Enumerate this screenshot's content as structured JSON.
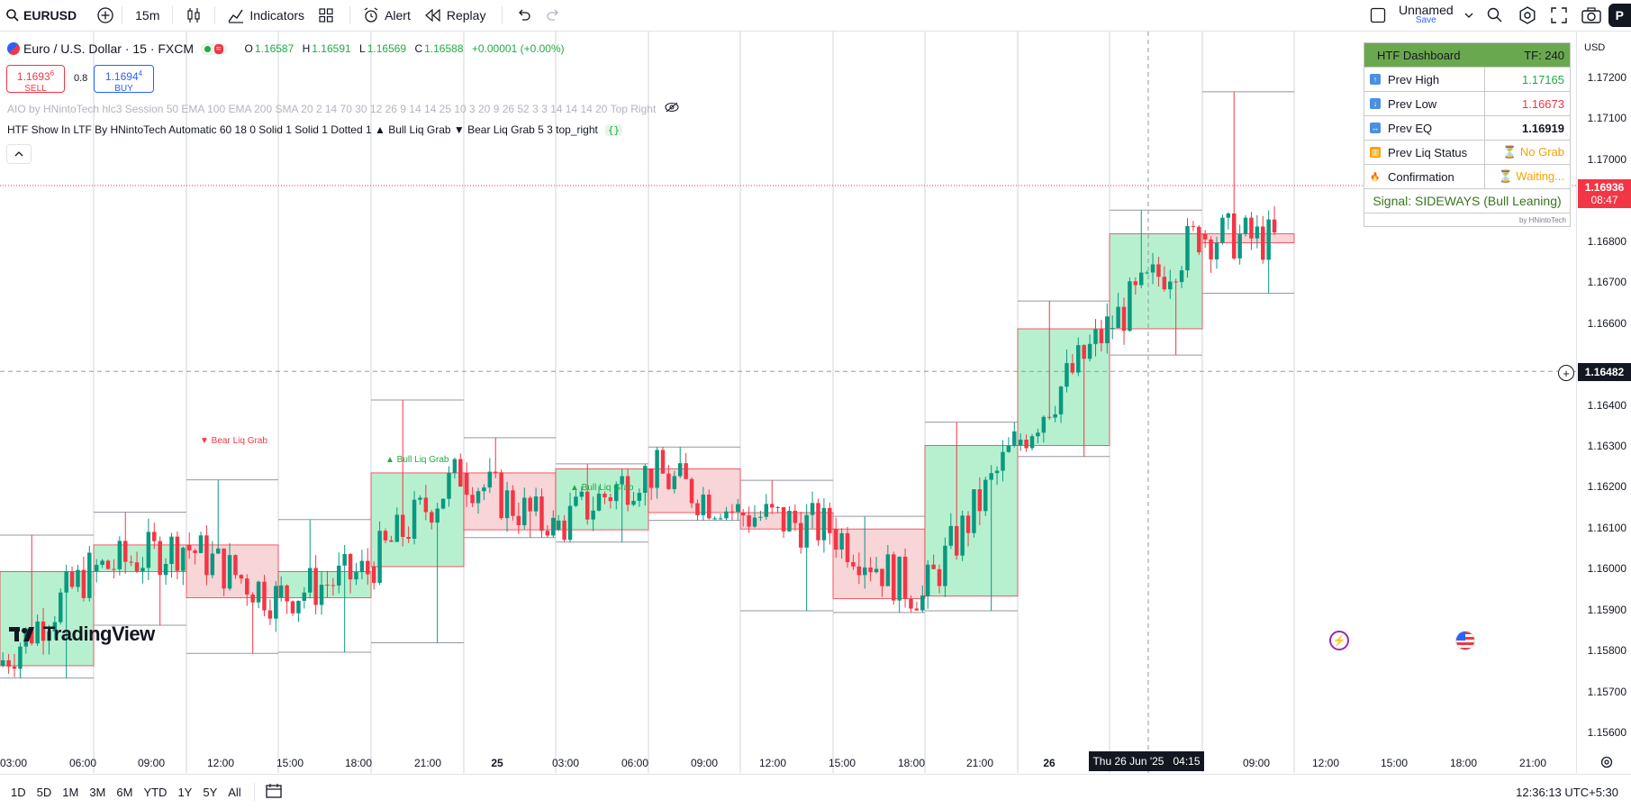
{
  "toolbar": {
    "symbol": "EURUSD",
    "interval": "15m",
    "indicators_label": "Indicators",
    "alert_label": "Alert",
    "replay_label": "Replay",
    "layout_name": "Unnamed",
    "layout_save": "Save",
    "corner_label": "P"
  },
  "legend": {
    "title": "Euro / U.S. Dollar · 15 · FXCM",
    "o_label": "O",
    "o_value": "1.16587",
    "h_label": "H",
    "h_value": "1.16591",
    "l_label": "L",
    "l_value": "1.16569",
    "c_label": "C",
    "c_value": "1.16588",
    "change": "+0.00001 (+0.00%)",
    "sell_price": "1.1693",
    "sell_price_sup": "6",
    "sell_label": "SELL",
    "spread": "0.8",
    "buy_price": "1.1694",
    "buy_price_sup": "4",
    "buy_label": "BUY",
    "indicator1": "AIO by HNintoTech hlc3 Session 50 EMA 100 EMA 200 SMA 20 2 14 70 30 12 26 9 14 14 25 10 3 20 9 26 52 3 3 14 14 14 20 Top Right",
    "indicator2": "HTF Show In LTF By HNintoTech Automatic 60 18 0 Solid 1 Solid 1 Dotted 1 ▲ Bull Liq Grab ▼ Bear Liq Grab 5 3 top_right",
    "indicator2_badge": "{}"
  },
  "dashboard": {
    "header_left": "HTF Dashboard",
    "header_right": "TF: 240",
    "rows": [
      {
        "label": "Prev High",
        "value": "1.17165",
        "icon": "up-arrow-icon",
        "color": "#22ab44"
      },
      {
        "label": "Prev Low",
        "value": "1.16673",
        "icon": "down-arrow-icon",
        "color": "#f23645"
      },
      {
        "label": "Prev EQ",
        "value": "1.16919",
        "icon": "left-right-arrow-icon",
        "color": "#131722"
      },
      {
        "label": "Prev Liq Status",
        "value": "⏳ No Grab",
        "icon": "chart-icon",
        "color": "#f5a300"
      },
      {
        "label": "Confirmation",
        "value": "⏳ Waiting...",
        "icon": "fire-icon",
        "color": "#f5a300"
      }
    ],
    "signal": "Signal: SIDEWAYS (Bull Leaning)",
    "credit": "by HNintoTech"
  },
  "chart_labels": {
    "bear_liq": "▼ Bear Liq Grab",
    "bull_liq_1": "▲ Bull Liq Grab",
    "bull_liq_2": "▲ Bull Liq Grab",
    "logo": "TradingView"
  },
  "price_axis": {
    "currency": "USD",
    "ticks": [
      "1.17200",
      "1.17100",
      "1.17000",
      "1.16800",
      "1.16700",
      "1.16600",
      "1.16400",
      "1.16300",
      "1.16200",
      "1.16100",
      "1.16000",
      "1.15900",
      "1.15800",
      "1.15700",
      "1.15600"
    ],
    "current_price": "1.16936",
    "countdown": "08:47",
    "crosshair_price": "1.16482"
  },
  "time_axis": {
    "labels": [
      "03:00",
      "06:00",
      "09:00",
      "12:00",
      "15:00",
      "18:00",
      "21:00",
      "25",
      "03:00",
      "06:00",
      "09:00",
      "12:00",
      "15:00",
      "18:00",
      "21:00",
      "26",
      "09:00",
      "12:00",
      "15:00",
      "18:00",
      "21:00"
    ],
    "crosshair_date": "Thu 26 Jun '25",
    "crosshair_time": "04:15"
  },
  "bottom": {
    "ranges": [
      "1D",
      "5D",
      "1M",
      "3M",
      "6M",
      "YTD",
      "1Y",
      "5Y",
      "All"
    ],
    "clock": "12:36:13 UTC+5:30"
  },
  "colors": {
    "bull": "#089981",
    "bear": "#f23645",
    "bull_box": "#b2f2cd",
    "bear_box": "#f8d4d6",
    "dash_header": "#6aa84f",
    "signal": "#38761d"
  }
}
